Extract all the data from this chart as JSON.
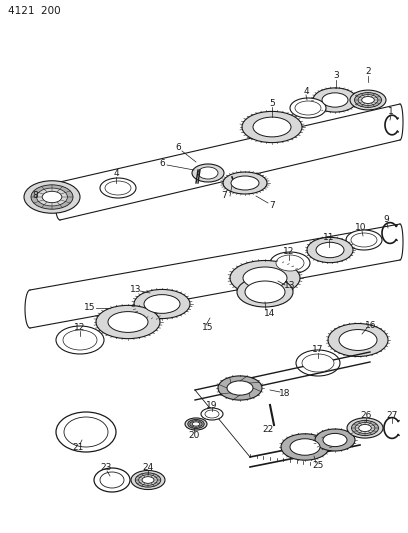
{
  "page_ref": "4121  200",
  "bg": "#ffffff",
  "lc": "#1a1a1a",
  "fig_w": 4.08,
  "fig_h": 5.33,
  "dpi": 100,
  "gray_light": "#d8d8d8",
  "gray_mid": "#b0b0b0",
  "gray_dark": "#888888",
  "white": "#ffffff"
}
